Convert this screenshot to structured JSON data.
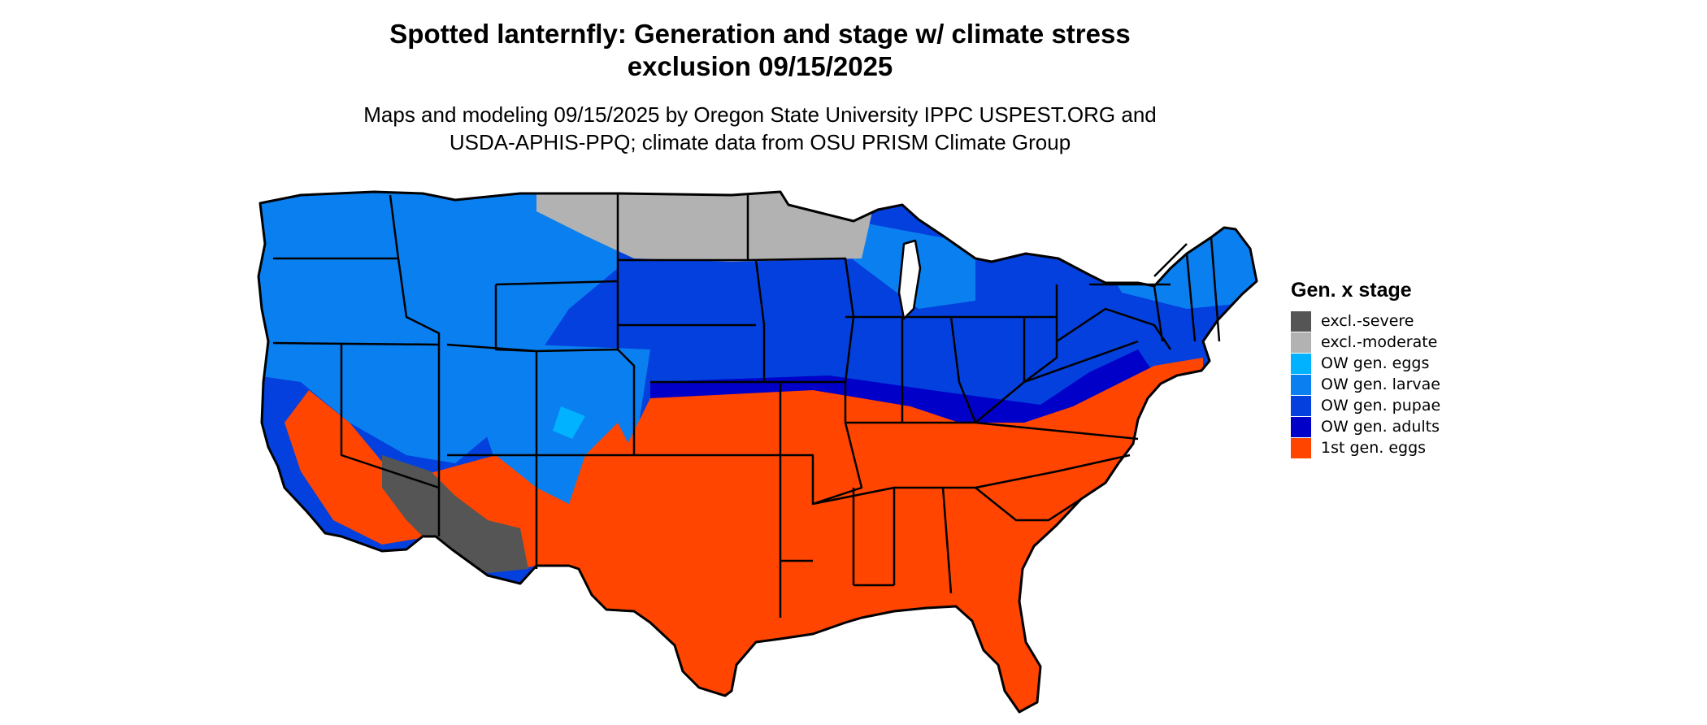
{
  "title": {
    "line1": "Spotted lanternfly: Generation and stage w/ climate stress",
    "line2": "exclusion 09/15/2025"
  },
  "subtitle": {
    "line1": "Maps and modeling 09/15/2025 by Oregon State University IPPC USPEST.ORG and",
    "line2": "USDA-APHIS-PPQ; climate data from OSU PRISM Climate Group"
  },
  "legend": {
    "title": "Gen. x stage",
    "items": [
      {
        "label": "excl.-severe",
        "color": "#555555"
      },
      {
        "label": "excl.-moderate",
        "color": "#b2b2b2"
      },
      {
        "label": "OW gen. eggs",
        "color": "#00b2ff"
      },
      {
        "label": "OW gen. larvae",
        "color": "#0a7ff0"
      },
      {
        "label": "OW gen. pupae",
        "color": "#0340dd"
      },
      {
        "label": "OW gen. adults",
        "color": "#0000c8"
      },
      {
        "label": "1st gen. eggs",
        "color": "#ff4500"
      }
    ]
  },
  "map": {
    "region": "contiguous United States",
    "border_color": "#000000"
  }
}
